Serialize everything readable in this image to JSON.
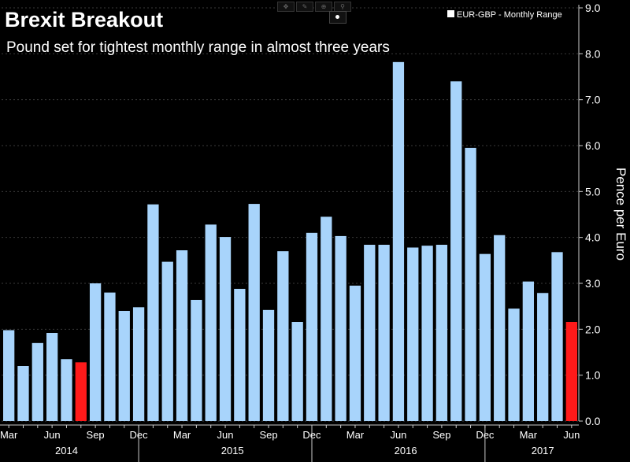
{
  "chart_data": {
    "type": "bar",
    "title": "Brexit Breakout",
    "subtitle": "Pound set for tightest monthly range in almost three years",
    "legend": "EUR-GBP - Monthly Range",
    "ylabel": "Pence per Euro",
    "ylim": [
      0,
      9
    ],
    "yticks": [
      "0.0",
      "1.0",
      "2.0",
      "3.0",
      "4.0",
      "5.0",
      "6.0",
      "7.0",
      "8.0",
      "9.0"
    ],
    "month_labels": [
      {
        "index": 0,
        "label": "Mar"
      },
      {
        "index": 3,
        "label": "Jun"
      },
      {
        "index": 6,
        "label": "Sep"
      },
      {
        "index": 9,
        "label": "Dec"
      },
      {
        "index": 12,
        "label": "Mar"
      },
      {
        "index": 15,
        "label": "Jun"
      },
      {
        "index": 18,
        "label": "Sep"
      },
      {
        "index": 21,
        "label": "Dec"
      },
      {
        "index": 24,
        "label": "Mar"
      },
      {
        "index": 27,
        "label": "Jun"
      },
      {
        "index": 30,
        "label": "Sep"
      },
      {
        "index": 33,
        "label": "Dec"
      },
      {
        "index": 36,
        "label": "Mar"
      },
      {
        "index": 39,
        "label": "Jun"
      }
    ],
    "year_labels": [
      {
        "center": 4,
        "label": "2014"
      },
      {
        "center": 15.5,
        "label": "2015"
      },
      {
        "center": 27.5,
        "label": "2016"
      },
      {
        "center": 37,
        "label": "2017"
      }
    ],
    "year_dividers": [
      9.5,
      21.5,
      33.5
    ],
    "categories": [
      "Mar 2014",
      "Apr 2014",
      "May 2014",
      "Jun 2014",
      "Jul 2014",
      "Aug 2014",
      "Sep 2014",
      "Oct 2014",
      "Nov 2014",
      "Dec 2014",
      "Jan 2015",
      "Feb 2015",
      "Mar 2015",
      "Apr 2015",
      "May 2015",
      "Jun 2015",
      "Jul 2015",
      "Aug 2015",
      "Sep 2015",
      "Oct 2015",
      "Nov 2015",
      "Dec 2015",
      "Jan 2016",
      "Feb 2016",
      "Mar 2016",
      "Apr 2016",
      "May 2016",
      "Jun 2016",
      "Jul 2016",
      "Aug 2016",
      "Sep 2016",
      "Oct 2016",
      "Nov 2016",
      "Dec 2016",
      "Jan 2017",
      "Feb 2017",
      "Mar 2017",
      "Apr 2017",
      "May 2017",
      "Jun 2017"
    ],
    "values": [
      1.98,
      1.2,
      1.7,
      1.92,
      1.35,
      1.28,
      3.0,
      2.8,
      2.4,
      2.48,
      4.72,
      3.47,
      3.72,
      2.64,
      4.28,
      4.01,
      2.88,
      4.73,
      2.42,
      3.7,
      2.16,
      4.1,
      4.45,
      4.03,
      2.95,
      3.84,
      3.84,
      7.82,
      3.78,
      3.82,
      3.84,
      7.4,
      5.95,
      3.64,
      4.05,
      2.45,
      3.04,
      2.79,
      3.68,
      2.16
    ],
    "highlight_indices": [
      5,
      39
    ],
    "colors": {
      "background": "#000000",
      "bar": "#a8d4fb",
      "highlight": "#ff1a1a",
      "grid": "#3a3a3a",
      "text": "#ffffff",
      "axis": "#cccccc"
    }
  }
}
